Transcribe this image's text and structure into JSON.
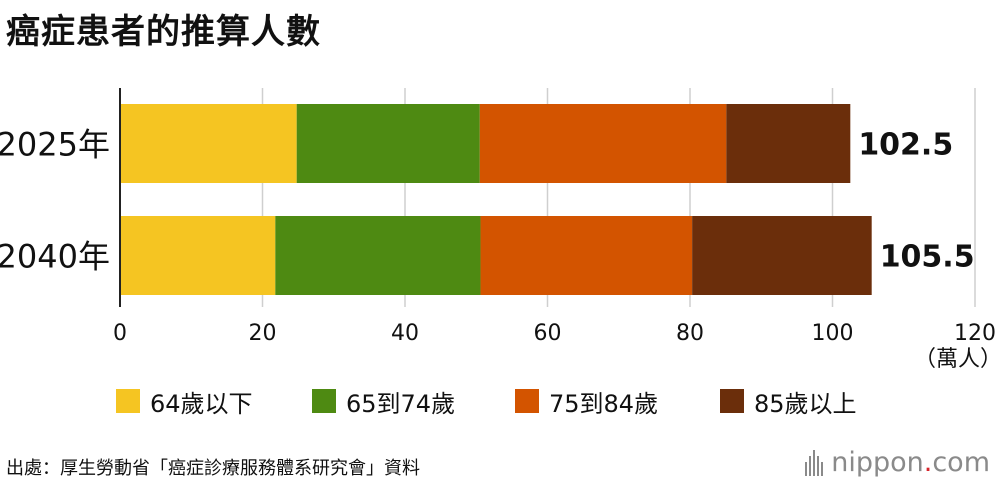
{
  "title": "癌症患者的推算人數",
  "unit": "（萬人）",
  "source": "出處：厚生勞動省「癌症診療服務體系研究會」資料",
  "logo": {
    "text": "nippon",
    "dot": ".",
    "tld": "com"
  },
  "chart_data": {
    "type": "bar",
    "orientation": "horizontal",
    "stacked": true,
    "categories": [
      "2025年",
      "2040年"
    ],
    "series": [
      {
        "name": "64歲以下",
        "color": "#f5c522",
        "values": [
          24.8,
          21.8
        ]
      },
      {
        "name": "65到74歲",
        "color": "#4e8a12",
        "values": [
          25.7,
          28.8
        ]
      },
      {
        "name": "75到84歲",
        "color": "#d35400",
        "values": [
          34.6,
          29.7
        ]
      },
      {
        "name": "85歲以上",
        "color": "#6b2e0b",
        "values": [
          17.4,
          25.2
        ]
      }
    ],
    "totals": [
      "102.5",
      "105.5"
    ],
    "xlim": [
      0,
      120
    ],
    "xticks": [
      "0",
      "20",
      "40",
      "60",
      "80",
      "100",
      "120"
    ],
    "grid": true,
    "legend": "bottom"
  }
}
